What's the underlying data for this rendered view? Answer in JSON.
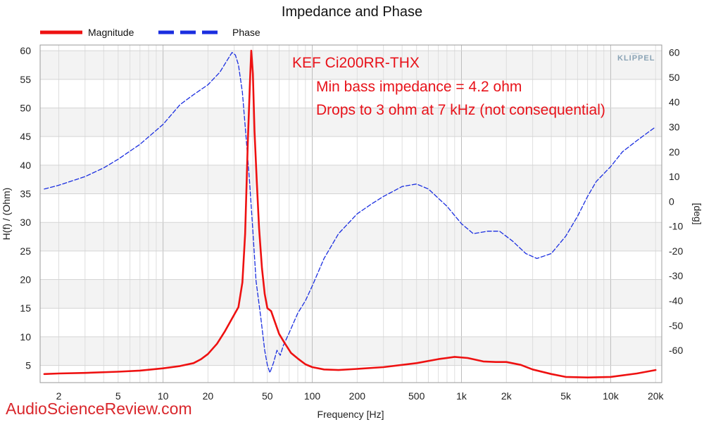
{
  "chart_data": {
    "type": "line",
    "title": "Impedance and Phase",
    "xlabel": "Frequency [Hz]",
    "ylabel_left": "H(f) / (Ohm)",
    "ylabel_right": "[deg]",
    "x_scale": "log",
    "xlim": [
      1.5,
      22000
    ],
    "ylim_left": [
      2,
      61
    ],
    "ylim_right": [
      -73,
      63
    ],
    "x_ticks": [
      {
        "value": 2,
        "label": "2"
      },
      {
        "value": 5,
        "label": "5"
      },
      {
        "value": 10,
        "label": "10"
      },
      {
        "value": 20,
        "label": "20"
      },
      {
        "value": 50,
        "label": "50"
      },
      {
        "value": 100,
        "label": "100"
      },
      {
        "value": 200,
        "label": "200"
      },
      {
        "value": 500,
        "label": "500"
      },
      {
        "value": 1000,
        "label": "1k"
      },
      {
        "value": 2000,
        "label": "2k"
      },
      {
        "value": 5000,
        "label": "5k"
      },
      {
        "value": 10000,
        "label": "10k"
      },
      {
        "value": 20000,
        "label": "20k"
      }
    ],
    "y_left_ticks": [
      5,
      10,
      15,
      20,
      25,
      30,
      35,
      40,
      45,
      50,
      55,
      60
    ],
    "y_right_ticks": [
      -60,
      -50,
      -40,
      -30,
      -20,
      -10,
      0,
      10,
      20,
      30,
      40,
      50,
      60
    ],
    "grid": true,
    "legend_position": "top-left",
    "series": [
      {
        "name": "Magnitude",
        "color": "#ee1111",
        "axis": "left",
        "style": "solid",
        "points": [
          [
            1.6,
            3.5
          ],
          [
            2,
            3.6
          ],
          [
            3,
            3.7
          ],
          [
            5,
            3.9
          ],
          [
            7,
            4.1
          ],
          [
            10,
            4.5
          ],
          [
            13,
            4.9
          ],
          [
            16,
            5.4
          ],
          [
            18,
            6.1
          ],
          [
            20,
            7.0
          ],
          [
            23,
            8.8
          ],
          [
            26,
            11.0
          ],
          [
            29,
            13.2
          ],
          [
            32,
            15.2
          ],
          [
            34,
            19.5
          ],
          [
            35.5,
            28
          ],
          [
            37,
            44
          ],
          [
            38.3,
            55
          ],
          [
            39,
            60
          ],
          [
            40,
            56
          ],
          [
            41,
            46
          ],
          [
            42.5,
            37
          ],
          [
            44,
            29
          ],
          [
            46,
            22
          ],
          [
            48,
            17.5
          ],
          [
            50,
            15
          ],
          [
            53,
            14.5
          ],
          [
            56,
            12.7
          ],
          [
            60,
            10.5
          ],
          [
            65,
            9.0
          ],
          [
            72,
            7.2
          ],
          [
            80,
            6.2
          ],
          [
            90,
            5.2
          ],
          [
            100,
            4.7
          ],
          [
            120,
            4.3
          ],
          [
            150,
            4.2
          ],
          [
            200,
            4.4
          ],
          [
            300,
            4.7
          ],
          [
            500,
            5.4
          ],
          [
            700,
            6.1
          ],
          [
            900,
            6.5
          ],
          [
            1100,
            6.3
          ],
          [
            1400,
            5.7
          ],
          [
            1700,
            5.6
          ],
          [
            2000,
            5.6
          ],
          [
            2500,
            5.1
          ],
          [
            3000,
            4.3
          ],
          [
            4000,
            3.5
          ],
          [
            5000,
            3.0
          ],
          [
            7000,
            2.9
          ],
          [
            10000,
            3.0
          ],
          [
            15000,
            3.6
          ],
          [
            20000,
            4.2
          ]
        ]
      },
      {
        "name": "Phase",
        "color": "#1a2ee0",
        "axis": "right",
        "style": "dashed",
        "points": [
          [
            1.6,
            5
          ],
          [
            2,
            6.5
          ],
          [
            3,
            10
          ],
          [
            4,
            13.5
          ],
          [
            5,
            17
          ],
          [
            7,
            23
          ],
          [
            10,
            31
          ],
          [
            13,
            39
          ],
          [
            16,
            43
          ],
          [
            20,
            47
          ],
          [
            24,
            52
          ],
          [
            27,
            57
          ],
          [
            29,
            60
          ],
          [
            30.5,
            59
          ],
          [
            32,
            55
          ],
          [
            34,
            44
          ],
          [
            36,
            26
          ],
          [
            38,
            8
          ],
          [
            40,
            -12
          ],
          [
            42,
            -32
          ],
          [
            45,
            -46
          ],
          [
            48,
            -60
          ],
          [
            50,
            -66
          ],
          [
            52,
            -69
          ],
          [
            55,
            -65
          ],
          [
            58,
            -60
          ],
          [
            61,
            -62
          ],
          [
            64,
            -58
          ],
          [
            70,
            -53
          ],
          [
            80,
            -45
          ],
          [
            90,
            -40
          ],
          [
            100,
            -34
          ],
          [
            120,
            -23
          ],
          [
            150,
            -13
          ],
          [
            200,
            -5
          ],
          [
            250,
            -1
          ],
          [
            300,
            2
          ],
          [
            400,
            6
          ],
          [
            500,
            7
          ],
          [
            600,
            5
          ],
          [
            800,
            -2
          ],
          [
            1000,
            -9
          ],
          [
            1200,
            -13
          ],
          [
            1500,
            -12
          ],
          [
            1800,
            -12
          ],
          [
            2200,
            -16
          ],
          [
            2700,
            -21
          ],
          [
            3200,
            -23
          ],
          [
            4000,
            -21
          ],
          [
            5000,
            -14
          ],
          [
            6000,
            -6
          ],
          [
            7000,
            2
          ],
          [
            8000,
            8
          ],
          [
            10000,
            14
          ],
          [
            12000,
            20
          ],
          [
            15000,
            24.5
          ],
          [
            18000,
            28
          ],
          [
            20000,
            30
          ]
        ]
      }
    ],
    "annotations": [
      "KEF Ci200RR-THX",
      "Min bass impedance = 4.2 ohm",
      "Drops to 3 ohm at 7 kHz (not consequential)"
    ]
  },
  "logo": "KLIPPEL",
  "watermark": "AudioScienceReview.com"
}
